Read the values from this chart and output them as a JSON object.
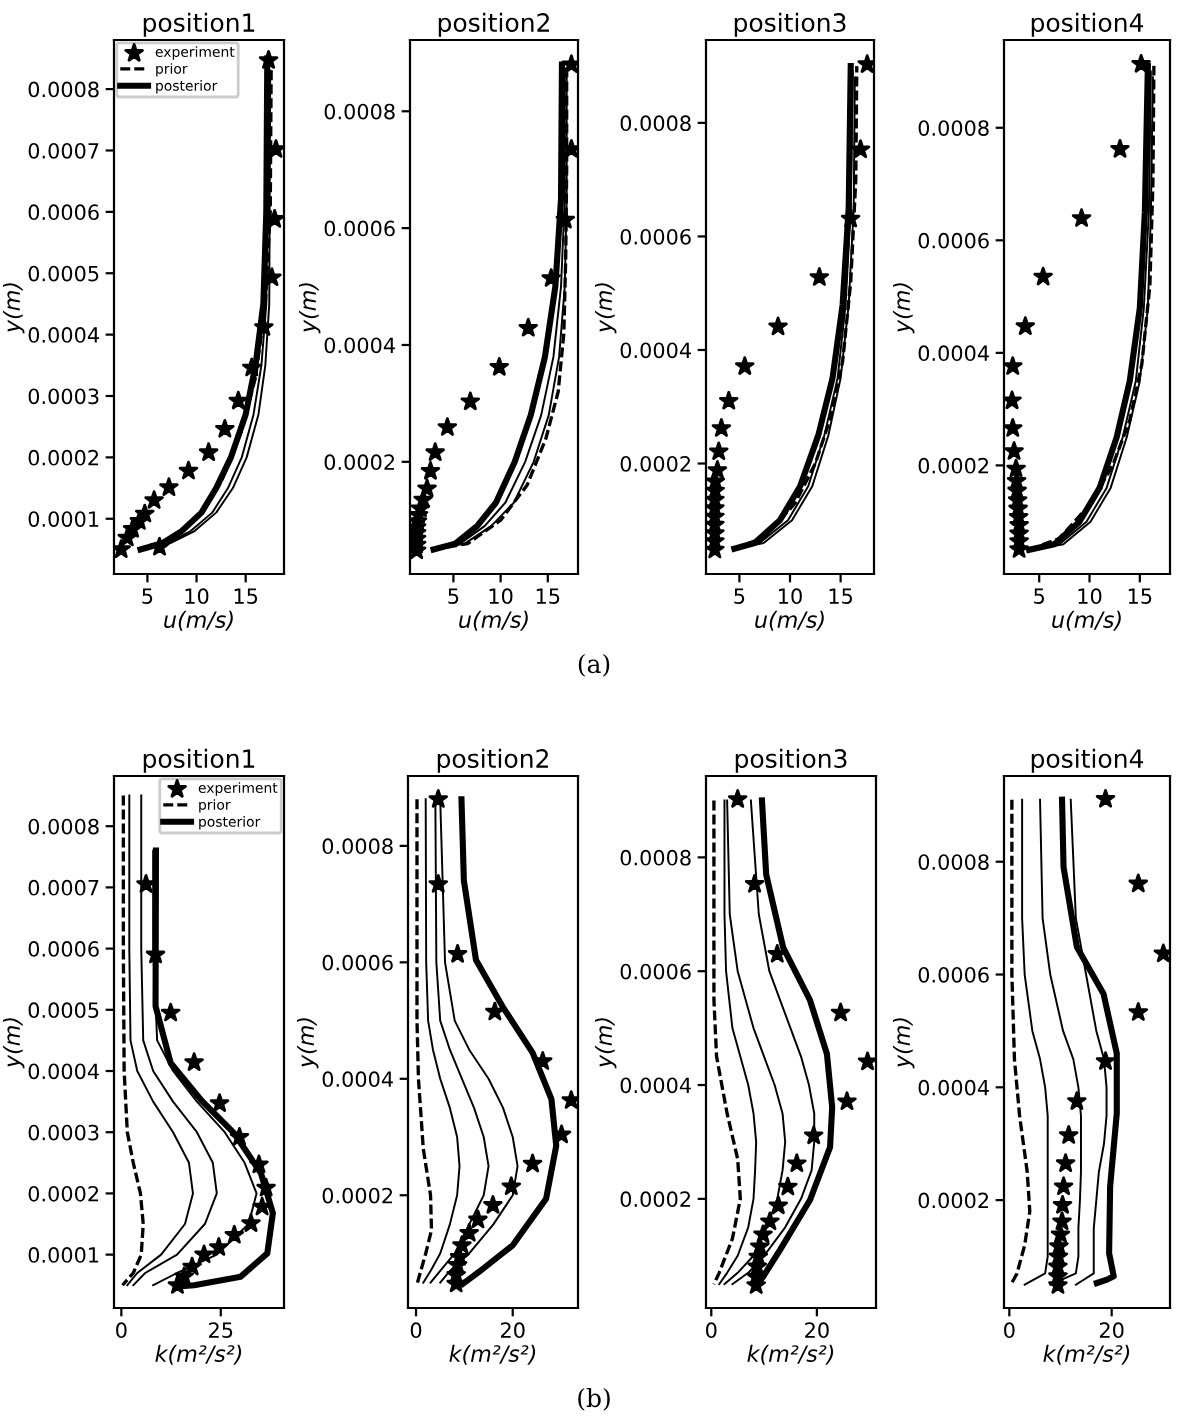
{
  "chart_data": [
    {
      "type": "line",
      "title": "position1",
      "xlabel": "u(m/s)",
      "ylabel": "y(m)",
      "xlim": [
        1.6,
        18.9
      ],
      "ylim": [
        1e-05,
        0.00088
      ],
      "xticks": [
        5,
        10,
        15
      ],
      "yticks": [
        0.0001,
        0.0002,
        0.0003,
        0.0004,
        0.0005,
        0.0006,
        0.0007,
        0.0008
      ],
      "grid": false,
      "legend": "top left",
      "annotations": [
        "(a)"
      ],
      "series": [
        {
          "name": "experiment",
          "type": "scatter",
          "marker": "star",
          "color": "#000000",
          "x": [
            2.33,
            2.95,
            3.49,
            4.18,
            4.73,
            5.68,
            7.19,
            9.18,
            11.23,
            12.88,
            14.25,
            15.62,
            16.85,
            17.67,
            17.95,
            18.08,
            17.33,
            6.23
          ],
          "values": [
            5e-05,
            6.9e-05,
            8.3e-05,
            9.6e-05,
            0.000108,
            0.00013,
            0.000151,
            0.000178,
            0.000208,
            0.000246,
            0.000292,
            0.000346,
            0.000412,
            0.000493,
            0.000588,
            0.000702,
            0.000847,
            5.4e-05
          ]
        },
        {
          "name": "prior",
          "type": "line",
          "line_style": "dashed",
          "color": "#000000",
          "x": [
            4.3,
            7,
            10,
            12.5,
            14.5,
            16,
            17,
            17.5,
            17.6
          ],
          "values": [
            5e-05,
            6e-05,
            0.0001,
            0.00016,
            0.00024,
            0.00033,
            0.00045,
            0.0006,
            0.00085
          ]
        },
        {
          "name": "posterior",
          "type": "line",
          "color": "#000000",
          "x": [
            4.3,
            6.5,
            8.5,
            10.5,
            12.0,
            13.5,
            15.0,
            16.0,
            16.8,
            17.1,
            17.2
          ],
          "values": [
            5e-05,
            6e-05,
            8e-05,
            0.00011,
            0.00015,
            0.0002,
            0.00027,
            0.00035,
            0.00045,
            0.0006,
            0.00085
          ]
        },
        {
          "type": "line",
          "color": "#000000",
          "x": [
            4.4,
            7.0,
            9.4,
            11.6,
            13.2,
            14.6,
            15.8,
            16.6,
            17.1,
            17.3
          ],
          "values": [
            5e-05,
            6e-05,
            8e-05,
            0.00011,
            0.00015,
            0.0002,
            0.00027,
            0.00035,
            0.00045,
            0.00084
          ]
        },
        {
          "type": "line",
          "color": "#000000",
          "x": [
            4.5,
            7.3,
            9.8,
            12.0,
            13.7,
            15.1,
            16.3,
            17.0,
            17.4,
            17.5
          ],
          "values": [
            5e-05,
            6e-05,
            8e-05,
            0.00011,
            0.00015,
            0.0002,
            0.00027,
            0.00035,
            0.00045,
            0.00083
          ]
        }
      ]
    },
    {
      "type": "line",
      "title": "position2",
      "xlabel": "u(m/s)",
      "ylabel": "y(m)",
      "xlim": [
        0.4,
        18.2
      ],
      "ylim": [
        8e-06,
        0.000922
      ],
      "xticks": [
        5,
        10,
        15
      ],
      "yticks": [
        0.0002,
        0.0004,
        0.0006,
        0.0008
      ],
      "grid": false,
      "series": [
        {
          "type": "scatter",
          "marker": "star",
          "color": "#000000",
          "x": [
            1.1,
            1.1,
            1.1,
            1.1,
            1.1,
            1.2,
            1.3,
            1.5,
            1.8,
            2.21,
            2.57,
            3.07,
            4.36,
            6.79,
            9.86,
            12.93,
            15.36,
            16.86,
            17.5,
            17.5
          ],
          "values": [
            4.8e-05,
            5.8e-05,
            6.8e-05,
            7.8e-05,
            8.8e-05,
            9.8e-05,
            0.000109,
            0.00012,
            0.000135,
            0.000154,
            0.000184,
            0.000216,
            0.000259,
            0.000303,
            0.000362,
            0.000429,
            0.000514,
            0.000614,
            0.000735,
            0.00088
          ]
        },
        {
          "type": "line",
          "line_style": "dashed",
          "color": "#000000",
          "x": [
            2.9,
            6.5,
            10,
            12.8,
            14.8,
            16.1,
            16.7,
            16.9,
            17.0,
            17.0
          ],
          "values": [
            5e-05,
            6e-05,
            0.0001,
            0.00016,
            0.00024,
            0.00032,
            0.00042,
            0.00055,
            0.0007,
            0.00088
          ]
        },
        {
          "type": "line",
          "color": "#000000",
          "x": [
            2.9,
            5.2,
            7.5,
            9.5,
            11.5,
            13.2,
            14.7,
            15.8,
            16.4,
            16.5
          ],
          "values": [
            5e-05,
            6e-05,
            9e-05,
            0.00013,
            0.0002,
            0.00028,
            0.00038,
            0.0005,
            0.00065,
            0.00088
          ]
        },
        {
          "type": "line",
          "color": "#000000",
          "x": [
            3.0,
            5.7,
            8.3,
            10.5,
            12.6,
            14.3,
            15.6,
            16.4,
            16.8,
            16.8
          ],
          "values": [
            5e-05,
            6e-05,
            9e-05,
            0.00013,
            0.0002,
            0.00028,
            0.00038,
            0.0005,
            0.00065,
            0.00087
          ]
        },
        {
          "type": "line",
          "color": "#000000",
          "x": [
            3.1,
            6.2,
            9.0,
            11.4,
            13.5,
            15.1,
            16.2,
            16.8,
            17.0,
            17.0
          ],
          "values": [
            5e-05,
            6e-05,
            9e-05,
            0.00013,
            0.0002,
            0.00028,
            0.00038,
            0.0005,
            0.00065,
            0.00086
          ]
        }
      ]
    },
    {
      "type": "line",
      "title": "position3",
      "xlabel": "u(m/s)",
      "ylabel": "y(m)",
      "xlim": [
        1.7,
        18.3
      ],
      "ylim": [
        5.4e-06,
        0.000946
      ],
      "xticks": [
        5,
        10,
        15
      ],
      "yticks": [
        0.0002,
        0.0004,
        0.0006,
        0.0008
      ],
      "grid": false,
      "series": [
        {
          "type": "scatter",
          "marker": "star",
          "color": "#000000",
          "x": [
            2.57,
            2.57,
            2.57,
            2.57,
            2.57,
            2.57,
            2.57,
            2.6,
            2.63,
            2.83,
            2.96,
            3.22,
            3.95,
            5.53,
            8.82,
            12.9,
            15.99,
            16.97,
            17.63
          ],
          "values": [
            4.8e-05,
            6.3e-05,
            7.7e-05,
            9.2e-05,
            0.000106,
            0.000121,
            0.000136,
            0.000152,
            0.000168,
            0.000188,
            0.000221,
            0.000262,
            0.00031,
            0.000371,
            0.000441,
            0.000528,
            0.000631,
            0.000753,
            0.000903
          ]
        },
        {
          "type": "line",
          "line_style": "dashed",
          "color": "#000000",
          "x": [
            4.5,
            7.5,
            10.5,
            12.5,
            14,
            15.2,
            16,
            16.5,
            16.6
          ],
          "values": [
            5e-05,
            7e-05,
            0.00013,
            0.0002,
            0.00028,
            0.00038,
            0.00052,
            0.0007,
            0.0009
          ]
        },
        {
          "type": "line",
          "color": "#000000",
          "x": [
            4.5,
            6.5,
            9,
            11,
            12.8,
            14.2,
            15.2,
            15.8,
            16.0
          ],
          "values": [
            5e-05,
            6e-05,
            0.0001,
            0.00016,
            0.00025,
            0.00035,
            0.00048,
            0.00065,
            0.0009
          ]
        },
        {
          "type": "line",
          "color": "#000000",
          "x": [
            4.6,
            7.0,
            9.8,
            11.8,
            13.4,
            14.7,
            15.5,
            16.0,
            16.2
          ],
          "values": [
            5e-05,
            6e-05,
            0.0001,
            0.00016,
            0.00025,
            0.00035,
            0.00048,
            0.00065,
            0.00089
          ]
        },
        {
          "type": "line",
          "color": "#000000",
          "x": [
            4.7,
            7.4,
            10.2,
            12.2,
            13.8,
            15.0,
            15.8,
            16.3,
            16.4
          ],
          "values": [
            5e-05,
            6e-05,
            0.0001,
            0.00016,
            0.00025,
            0.00035,
            0.00048,
            0.00065,
            0.00088
          ]
        }
      ]
    },
    {
      "type": "line",
      "title": "position4",
      "xlabel": "u(m/s)",
      "ylabel": "y(m)",
      "xlim": [
        1.5,
        18.0
      ],
      "ylim": [
        7e-06,
        0.000956
      ],
      "xticks": [
        5,
        10,
        15
      ],
      "yticks": [
        0.0002,
        0.0004,
        0.0006,
        0.0008
      ],
      "grid": false,
      "series": [
        {
          "type": "scatter",
          "marker": "star",
          "color": "#000000",
          "x": [
            3.0,
            3.0,
            3.0,
            3.0,
            2.95,
            2.9,
            2.85,
            2.8,
            2.75,
            2.7,
            2.5,
            2.37,
            2.3,
            2.37,
            3.62,
            5.39,
            9.21,
            13.03,
            15.13
          ],
          "values": [
            5.1e-05,
            6.5e-05,
            7.9e-05,
            9.4e-05,
            0.000108,
            0.000123,
            0.000138,
            0.000155,
            0.000172,
            0.000194,
            0.000225,
            0.000266,
            0.000315,
            0.000376,
            0.000447,
            0.000535,
            0.000639,
            0.000762,
            0.000913
          ]
        },
        {
          "type": "line",
          "line_style": "dashed",
          "color": "#000000",
          "x": [
            4,
            7,
            10,
            12.3,
            14,
            15.2,
            16,
            16.3,
            16.4
          ],
          "values": [
            5e-05,
            7e-05,
            0.00013,
            0.0002,
            0.00028,
            0.00038,
            0.00052,
            0.0007,
            0.00091
          ]
        },
        {
          "type": "line",
          "color": "#000000",
          "x": [
            4.0,
            6.5,
            9,
            11,
            12.7,
            14,
            15,
            15.5,
            15.8
          ],
          "values": [
            5e-05,
            6e-05,
            0.0001,
            0.00016,
            0.00025,
            0.00035,
            0.00048,
            0.00065,
            0.00091
          ]
        },
        {
          "type": "line",
          "color": "#000000",
          "x": [
            4.1,
            7.0,
            9.7,
            11.7,
            13.3,
            14.6,
            15.4,
            15.9,
            16.1
          ],
          "values": [
            5e-05,
            6e-05,
            0.0001,
            0.00016,
            0.00025,
            0.00035,
            0.00048,
            0.00065,
            0.0009
          ]
        },
        {
          "type": "line",
          "color": "#000000",
          "x": [
            4.2,
            7.4,
            10.1,
            12.1,
            13.7,
            15.0,
            15.8,
            16.1,
            16.3
          ],
          "values": [
            5e-05,
            6e-05,
            0.0001,
            0.00016,
            0.00025,
            0.00035,
            0.00048,
            0.00065,
            0.00089
          ]
        }
      ]
    },
    {
      "type": "line",
      "title": "position1",
      "xlabel": "k(m²/s²)",
      "ylabel": "y(m)",
      "xlim": [
        -1.85,
        40.9
      ],
      "ylim": [
        1.28e-05,
        0.000882
      ],
      "xticks": [
        0,
        25
      ],
      "yticks": [
        0.0001,
        0.0002,
        0.0003,
        0.0004,
        0.0005,
        0.0006,
        0.0007,
        0.0008
      ],
      "grid": false,
      "legend": "top right",
      "annotations": [
        "(b)"
      ],
      "series": [
        {
          "name": "experiment",
          "type": "scatter",
          "marker": "star",
          "color": "#000000",
          "x": [
            14.1,
            15.8,
            17.8,
            20.8,
            24.5,
            28.4,
            32.6,
            35.4,
            36.4,
            34.6,
            29.7,
            24.7,
            18.3,
            12.4,
            8.6,
            6.2
          ],
          "values": [
            5e-05,
            6.4e-05,
            8e-05,
            0.0001,
            0.000112,
            0.000132,
            0.000151,
            0.000178,
            0.000209,
            0.000247,
            0.000292,
            0.000347,
            0.000414,
            0.000495,
            0.00059,
            0.000705
          ]
        },
        {
          "name": "prior",
          "type": "line",
          "line_style": "dashed",
          "color": "#000000",
          "x": [
            0.5,
            0.5,
            0.7,
            1.5,
            3.0,
            4.8,
            5.5,
            5.0,
            3.0,
            0.3
          ],
          "values": [
            0.00085,
            0.0006,
            0.0004,
            0.0003,
            0.00025,
            0.0002,
            0.00015,
            0.0001,
            7e-05,
            5e-05
          ]
        },
        {
          "name": "posterior",
          "type": "line",
          "color": "#000000",
          "x": [
            8.7,
            8.6,
            12.4,
            20,
            28.4,
            35.1,
            38.1,
            36.7,
            30,
            18.3,
            14.1
          ],
          "values": [
            0.00076,
            0.000506,
            0.000413,
            0.000353,
            0.000298,
            0.000233,
            0.000168,
            0.000102,
            6.4e-05,
            5e-05,
            4.8e-05
          ]
        },
        {
          "type": "line",
          "color": "#000000",
          "x": [
            2.0,
            2.0,
            2.3,
            4,
            8,
            13,
            17,
            18,
            16,
            10,
            4,
            1.5
          ],
          "values": [
            0.00085,
            0.0006,
            0.00045,
            0.0004,
            0.00035,
            0.0003,
            0.00025,
            0.0002,
            0.00015,
            0.0001,
            7e-05,
            5e-05
          ]
        },
        {
          "type": "line",
          "color": "#000000",
          "x": [
            5,
            5,
            5.5,
            8,
            13,
            19,
            23,
            24,
            21,
            14,
            6,
            3
          ],
          "values": [
            0.00085,
            0.0006,
            0.00045,
            0.0004,
            0.00035,
            0.0003,
            0.00025,
            0.0002,
            0.00015,
            0.0001,
            7e-05,
            5e-05
          ]
        },
        {
          "type": "line",
          "color": "#000000",
          "x": [
            8,
            8,
            9,
            13,
            19,
            26,
            31,
            34,
            32,
            24,
            14,
            8
          ],
          "values": [
            0.00076,
            0.0006,
            0.00045,
            0.0004,
            0.00035,
            0.0003,
            0.00025,
            0.0002,
            0.00015,
            0.0001,
            7e-05,
            5e-05
          ]
        }
      ]
    },
    {
      "type": "line",
      "title": "position2",
      "xlabel": "k(m²/s²)",
      "ylabel": "y(m)",
      "xlim": [
        -1.66,
        33.5
      ],
      "ylim": [
        6.4e-06,
        0.00092
      ],
      "xticks": [
        0,
        20
      ],
      "yticks": [
        0.0002,
        0.0004,
        0.0006,
        0.0008
      ],
      "grid": false,
      "series": [
        {
          "type": "scatter",
          "marker": "star",
          "color": "#000000",
          "x": [
            8.3,
            8.3,
            8.6,
            9.0,
            9.5,
            11,
            12.8,
            15.9,
            19.7,
            24.1,
            30.1,
            32.1,
            26.2,
            16.3,
            8.6,
            4.6,
            4.6
          ],
          "values": [
            4.8e-05,
            6.3e-05,
            8e-05,
            9.4e-05,
            0.000114,
            0.000135,
            0.000158,
            0.000183,
            0.000215,
            0.000254,
            0.000304,
            0.000363,
            0.00043,
            0.000515,
            0.000614,
            0.000734,
            0.00088
          ]
        },
        {
          "type": "line",
          "line_style": "dashed",
          "color": "#000000",
          "x": [
            0.2,
            0.2,
            0.5,
            1.5,
            3.0,
            3.2,
            2.0,
            0.3
          ],
          "values": [
            0.00088,
            0.0005,
            0.0004,
            0.00028,
            0.0002,
            0.00014,
            0.0001,
            5e-05
          ]
        },
        {
          "type": "line",
          "color": "#000000",
          "x": [
            9.4,
            9.9,
            12.4,
            17.9,
            24.1,
            28,
            29,
            26.9,
            20,
            13.1,
            9.7
          ],
          "values": [
            0.00088,
            0.00074,
            0.000604,
            0.000524,
            0.000445,
            0.000365,
            0.000285,
            0.000194,
            0.000114,
            6.9e-05,
            4.8e-05
          ]
        },
        {
          "type": "line",
          "color": "#000000",
          "x": [
            2.0,
            2.1,
            2.5,
            3.5,
            5,
            7,
            8.5,
            9,
            8.5,
            7,
            5,
            3,
            1.5
          ],
          "values": [
            0.00088,
            0.0006,
            0.0005,
            0.00045,
            0.0004,
            0.00035,
            0.0003,
            0.00025,
            0.0002,
            0.00015,
            0.0001,
            7e-05,
            5e-05
          ]
        },
        {
          "type": "line",
          "color": "#000000",
          "x": [
            4,
            4.2,
            5,
            7,
            9.5,
            12,
            14,
            15,
            14,
            11,
            8,
            5,
            3
          ],
          "values": [
            0.00088,
            0.0006,
            0.0005,
            0.00045,
            0.0004,
            0.00035,
            0.0003,
            0.00025,
            0.0002,
            0.00015,
            0.0001,
            7e-05,
            5e-05
          ]
        },
        {
          "type": "line",
          "color": "#000000",
          "x": [
            5,
            6,
            8,
            11,
            15,
            18,
            20,
            21,
            20,
            16,
            11,
            7,
            5
          ],
          "values": [
            0.00088,
            0.0006,
            0.0005,
            0.00045,
            0.0004,
            0.00035,
            0.0003,
            0.00025,
            0.0002,
            0.00015,
            0.0001,
            7e-05,
            5e-05
          ]
        }
      ]
    },
    {
      "type": "line",
      "title": "position3",
      "xlabel": "k(m²/s²)",
      "ylabel": "y(m)",
      "xlim": [
        -1.0,
        31.2
      ],
      "ylim": [
        8.2e-06,
        0.000943
      ],
      "xticks": [
        0,
        20
      ],
      "yticks": [
        0.0002,
        0.0004,
        0.0006,
        0.0008
      ],
      "grid": false,
      "series": [
        {
          "type": "scatter",
          "marker": "star",
          "color": "#000000",
          "x": [
            8.5,
            8.5,
            8.7,
            8.9,
            9.2,
            9.8,
            11.1,
            12.7,
            14.5,
            16.2,
            19.4,
            25.7,
            29.6,
            24.5,
            12.5,
            8.2,
            5.0
          ],
          "values": [
            4.8e-05,
            6.3e-05,
            8.1e-05,
            9.8e-05,
            0.000116,
            0.000137,
            0.00016,
            0.000188,
            0.000221,
            0.000262,
            0.000311,
            0.000371,
            0.000441,
            0.000527,
            0.00063,
            0.000753,
            0.000902
          ]
        },
        {
          "type": "line",
          "line_style": "dashed",
          "color": "#000000",
          "x": [
            0.5,
            0.5,
            1,
            3,
            5,
            5.5,
            4,
            1.5,
            0.5
          ],
          "values": [
            0.0009,
            0.00055,
            0.00045,
            0.00035,
            0.00027,
            0.0002,
            0.00013,
            7e-05,
            5e-05
          ]
        },
        {
          "type": "line",
          "color": "#000000",
          "x": [
            9.6,
            10.4,
            13.6,
            18.7,
            21.9,
            22.9,
            22.5,
            18.7,
            13,
            9.8,
            8.5
          ],
          "values": [
            0.0009,
            0.00077,
            0.000642,
            0.000549,
            0.000455,
            0.000361,
            0.000291,
            0.000198,
            0.00011,
            6.3e-05,
            4.8e-05
          ]
        },
        {
          "type": "line",
          "color": "#000000",
          "x": [
            2.5,
            2.5,
            2.8,
            4,
            5.5,
            7,
            8,
            8.5,
            8.3,
            8,
            7,
            5,
            3,
            1.5
          ],
          "values": [
            0.0009,
            0.0007,
            0.0006,
            0.0005,
            0.00045,
            0.0004,
            0.00035,
            0.0003,
            0.00025,
            0.0002,
            0.00015,
            0.0001,
            7e-05,
            5e-05
          ]
        },
        {
          "type": "line",
          "color": "#000000",
          "x": [
            3,
            3.5,
            5,
            8,
            10,
            12,
            13.5,
            14,
            13.5,
            12.5,
            10.5,
            8,
            5,
            2.5
          ],
          "values": [
            0.0009,
            0.0007,
            0.0006,
            0.0005,
            0.00045,
            0.0004,
            0.00035,
            0.0003,
            0.00025,
            0.0002,
            0.00015,
            0.0001,
            7e-05,
            5e-05
          ]
        },
        {
          "type": "line",
          "color": "#000000",
          "x": [
            7.5,
            9,
            11,
            15,
            17,
            18.5,
            19.5,
            19.5,
            19,
            17,
            14,
            10,
            7,
            4
          ],
          "values": [
            0.0009,
            0.0007,
            0.0006,
            0.0005,
            0.00045,
            0.0004,
            0.00035,
            0.0003,
            0.00025,
            0.0002,
            0.00015,
            0.0001,
            7e-05,
            5e-05
          ]
        }
      ]
    },
    {
      "type": "line",
      "title": "position4",
      "xlabel": "k(m²/s²)",
      "ylabel": "y(m)",
      "xlim": [
        -1.04,
        31.4
      ],
      "ylim": [
        8.7e-06,
        0.000952
      ],
      "xticks": [
        0,
        20
      ],
      "yticks": [
        0.0002,
        0.0004,
        0.0006,
        0.0008
      ],
      "grid": false,
      "series": [
        {
          "type": "scatter",
          "marker": "star",
          "color": "#000000",
          "x": [
            9.5,
            9.5,
            9.5,
            9.6,
            9.7,
            10,
            10.3,
            10.4,
            10.6,
            11.0,
            11.6,
            13.2,
            18.8,
            25.2,
            30.1,
            25.2,
            18.8
          ],
          "values": [
            4.9e-05,
            6.5e-05,
            8.2e-05,
            0.0001,
            0.000118,
            0.000139,
            0.000162,
            0.000191,
            0.000224,
            0.000265,
            0.000315,
            0.000375,
            0.000446,
            0.000533,
            0.000637,
            0.000761,
            0.000911
          ]
        },
        {
          "type": "line",
          "line_style": "dashed",
          "color": "#000000",
          "x": [
            0.5,
            0.5,
            1,
            2,
            3.5,
            4,
            3,
            1.5,
            0.3
          ],
          "values": [
            0.00091,
            0.0006,
            0.00045,
            0.00035,
            0.00025,
            0.00018,
            0.00012,
            7e-05,
            5e-05
          ]
        },
        {
          "type": "line",
          "color": "#000000",
          "x": [
            10.3,
            10.6,
            13.2,
            18.4,
            21,
            21,
            19.7,
            19.5,
            20.4,
            19.1,
            17.1
          ],
          "values": [
            0.00091,
            0.00079,
            0.000649,
            0.000566,
            0.00046,
            0.000354,
            0.000224,
            0.000106,
            6.5e-05,
            5.9e-05,
            5.3e-05
          ]
        },
        {
          "type": "line",
          "color": "#000000",
          "x": [
            2.5,
            2.5,
            3,
            4.5,
            6,
            7,
            7.5,
            7.5,
            7.5,
            7.5,
            7.5,
            7.5,
            7,
            3
          ],
          "values": [
            0.00091,
            0.0007,
            0.0006,
            0.0005,
            0.00045,
            0.0004,
            0.00035,
            0.0003,
            0.00025,
            0.0002,
            0.00015,
            0.0001,
            7e-05,
            5e-05
          ]
        },
        {
          "type": "line",
          "color": "#000000",
          "x": [
            6,
            6.5,
            8,
            10.5,
            12.5,
            13.5,
            14,
            14,
            14,
            13.8,
            13.5,
            13.5,
            13,
            8
          ],
          "values": [
            0.00091,
            0.0007,
            0.0006,
            0.0005,
            0.00045,
            0.0004,
            0.00035,
            0.0003,
            0.00025,
            0.0002,
            0.00015,
            0.0001,
            7e-05,
            5e-05
          ]
        },
        {
          "type": "line",
          "color": "#000000",
          "x": [
            12,
            13,
            15,
            17,
            18.5,
            19,
            19,
            18.5,
            17.5,
            17,
            16.5,
            16.5,
            16.5,
            13
          ],
          "values": [
            0.00091,
            0.0007,
            0.0006,
            0.0005,
            0.00045,
            0.0004,
            0.00035,
            0.0003,
            0.00025,
            0.0002,
            0.00015,
            0.0001,
            7e-05,
            5e-05
          ]
        }
      ]
    }
  ]
}
